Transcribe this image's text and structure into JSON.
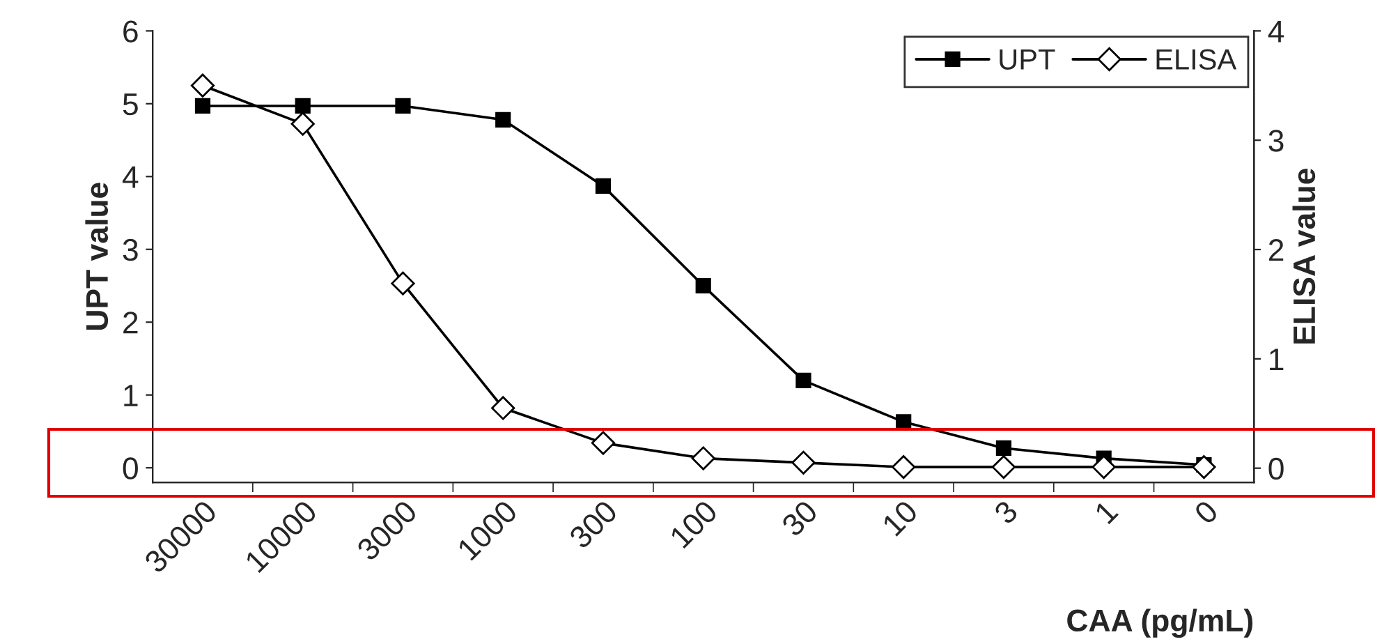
{
  "chart_data": {
    "type": "line",
    "categories": [
      "30000",
      "10000",
      "3000",
      "1000",
      "300",
      "100",
      "30",
      "10",
      "3",
      "1",
      "0"
    ],
    "series": [
      {
        "name": "UPT",
        "color": "#000000",
        "marker": "square",
        "values": [
          4.97,
          4.97,
          4.97,
          4.78,
          3.87,
          2.5,
          1.2,
          0.63,
          0.27,
          0.13,
          0.04
        ]
      },
      {
        "name": "ELISA",
        "color": "#000000",
        "marker": "diamond",
        "axis": "y2",
        "values": [
          3.5,
          3.15,
          1.69,
          0.55,
          0.23,
          0.09,
          0.05,
          0.01,
          0.01,
          0.01,
          0.01
        ]
      }
    ],
    "xlabel": "CAA (pg/mL)",
    "ylabel": "UPT value",
    "y2label": "ELISA value",
    "ylim": [
      -0.2,
      6
    ],
    "yticks": [
      0,
      1,
      2,
      3,
      4,
      5,
      6
    ],
    "y2lim": [
      -0.13,
      4
    ],
    "y2ticks": [
      0,
      1,
      2,
      3,
      4
    ],
    "grid": false,
    "legend": "top right",
    "line_style": "solid"
  }
}
